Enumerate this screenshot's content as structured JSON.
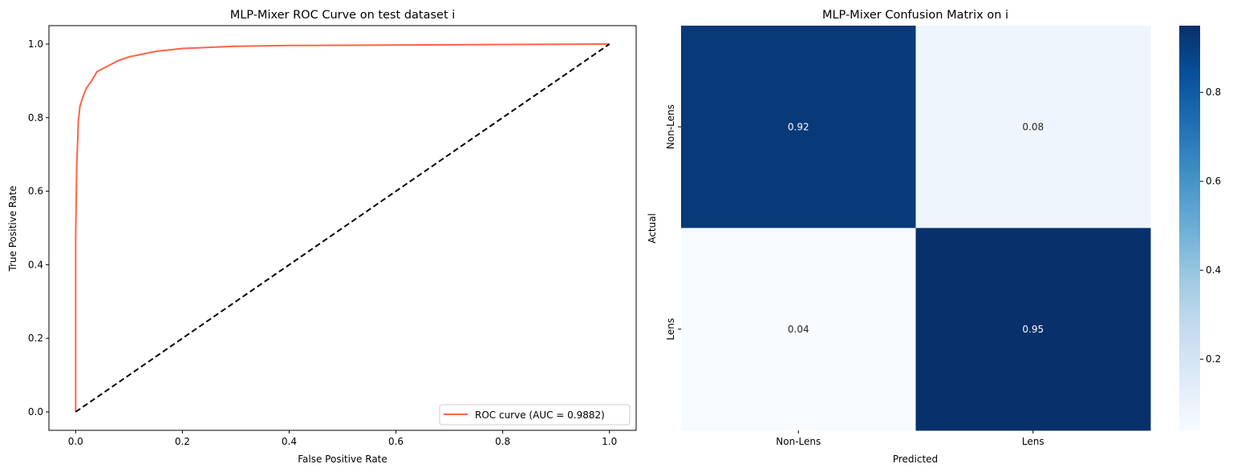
{
  "chart_data": [
    {
      "type": "line",
      "title": "MLP-Mixer ROC Curve on test dataset i",
      "xlabel": "False Positive Rate",
      "ylabel": "True Positive Rate",
      "xlim": [
        -0.05,
        1.05
      ],
      "ylim": [
        -0.05,
        1.05
      ],
      "xticks": [
        "0.0",
        "0.2",
        "0.4",
        "0.6",
        "0.8",
        "1.0"
      ],
      "yticks": [
        "0.0",
        "0.2",
        "0.4",
        "0.6",
        "0.8",
        "1.0"
      ],
      "grid": false,
      "legend_position": "lower-right",
      "series": [
        {
          "name": "ROC curve (AUC = 0.9882)",
          "color": "#ff6347",
          "x": [
            0,
            0,
            0.002,
            0.004,
            0.005,
            0.008,
            0.012,
            0.02,
            0.03,
            0.04,
            0.06,
            0.08,
            0.1,
            0.15,
            0.2,
            0.3,
            0.4,
            0.7,
            1.0
          ],
          "y": [
            0,
            0.47,
            0.67,
            0.74,
            0.79,
            0.83,
            0.85,
            0.88,
            0.9,
            0.925,
            0.94,
            0.955,
            0.965,
            0.98,
            0.988,
            0.994,
            0.996,
            0.998,
            1.0
          ]
        },
        {
          "style": "dashed",
          "color": "#000000",
          "x": [
            0,
            1
          ],
          "y": [
            0,
            1
          ]
        }
      ]
    },
    {
      "type": "heatmap",
      "title": "MLP-Mixer Confusion Matrix on i",
      "xlabel": "Predicted",
      "ylabel": "Actual",
      "x_categories": [
        "Non-Lens",
        "Lens"
      ],
      "y_categories": [
        "Non-Lens",
        "Lens"
      ],
      "values": [
        [
          0.92,
          0.08
        ],
        [
          0.04,
          0.95
        ]
      ],
      "labels": [
        [
          "0.92",
          "0.08"
        ],
        [
          "0.04",
          "0.95"
        ]
      ],
      "colormap": "Blues",
      "colorbar": {
        "range": [
          0.04,
          0.95
        ],
        "ticks": [
          "0.2",
          "0.4",
          "0.6",
          "0.8"
        ]
      }
    }
  ]
}
